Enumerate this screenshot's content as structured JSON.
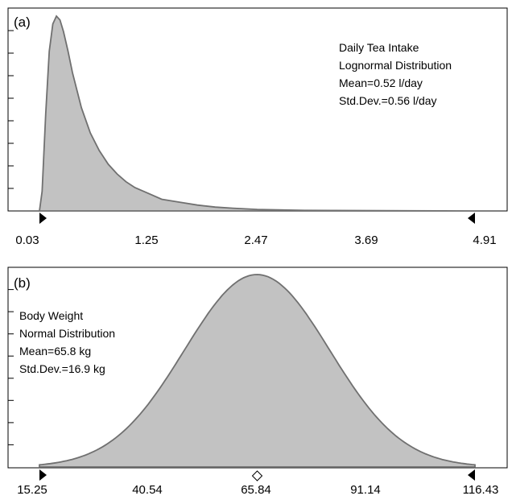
{
  "chart_data": [
    {
      "type": "area",
      "panel_label": "(a)",
      "title": "",
      "xlabel": "",
      "ylabel": "",
      "annotation_lines": [
        "Daily Tea Intake",
        "Lognormal Distribution",
        "Mean=0.52 l/day",
        "Std.Dev.=0.56 l/day"
      ],
      "x_tick_labels": [
        "0.03",
        "1.25",
        "2.47",
        "3.69",
        "4.91"
      ],
      "xlim": [
        0.03,
        4.91
      ],
      "ylim": [
        0,
        1
      ],
      "grid": false,
      "y_minor_ticks": 8,
      "distribution": "lognormal",
      "mean": 0.52,
      "std_dev": 0.56,
      "series": [
        {
          "x": [
            0.03,
            0.06,
            0.1,
            0.14,
            0.18,
            0.22,
            0.26,
            0.3,
            0.35,
            0.4,
            0.5,
            0.6,
            0.7,
            0.8,
            0.9,
            1.0,
            1.1,
            1.25,
            1.4,
            1.6,
            1.8,
            2.0,
            2.2,
            2.47,
            3.0,
            4.91
          ],
          "y": [
            0.0,
            0.1,
            0.5,
            0.82,
            0.96,
            1.0,
            0.98,
            0.92,
            0.82,
            0.71,
            0.53,
            0.4,
            0.31,
            0.24,
            0.19,
            0.15,
            0.12,
            0.09,
            0.06,
            0.045,
            0.03,
            0.02,
            0.014,
            0.008,
            0.003,
            0.0
          ]
        }
      ]
    },
    {
      "type": "area",
      "panel_label": "(b)",
      "title": "",
      "xlabel": "",
      "ylabel": "",
      "annotation_lines": [
        "Body Weight",
        "Normal Distribution",
        "Mean=65.8 kg",
        "Std.Dev.=16.9 kg"
      ],
      "x_tick_labels": [
        "15.25",
        "40.54",
        "65.84",
        "91.14",
        "116.43"
      ],
      "xlim": [
        15.25,
        116.43
      ],
      "ylim": [
        0,
        1
      ],
      "grid": false,
      "y_minor_ticks": 8,
      "distribution": "normal",
      "mean": 65.8,
      "std_dev": 16.9,
      "mean_marker": 65.84
    }
  ]
}
